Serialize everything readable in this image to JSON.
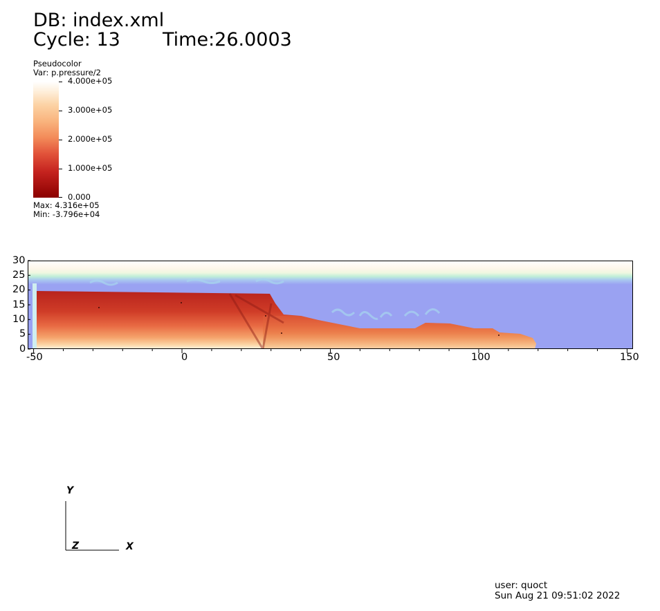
{
  "header": {
    "db": "DB: index.xml",
    "cycle": "Cycle: 13",
    "time": "Time:26.0003"
  },
  "legend": {
    "plot_type": "Pseudocolor",
    "variable": "Var: p.pressure/2",
    "ticks": [
      "4.000e+05",
      "3.000e+05",
      "2.000e+05",
      "1.000e+05",
      "0.000"
    ],
    "max": "Max:  4.316e+05",
    "min": "Min: -3.796e+04"
  },
  "plot": {
    "x_ticks": [
      "-50",
      "0",
      "50",
      "100",
      "150"
    ],
    "y_ticks": [
      "30",
      "25",
      "20",
      "15",
      "10",
      "5",
      "0"
    ],
    "x_range": [
      -52,
      152
    ],
    "y_range": [
      0,
      30
    ]
  },
  "triad": {
    "x": "X",
    "y": "Y",
    "z": "Z"
  },
  "footer": {
    "user": "user: quoct",
    "date": "Sun Aug 21 09:51:02 2022"
  },
  "colors": {
    "water": "#9aa2f2",
    "pressure_high": "#8b0000",
    "pressure_low": "#ffffff"
  }
}
